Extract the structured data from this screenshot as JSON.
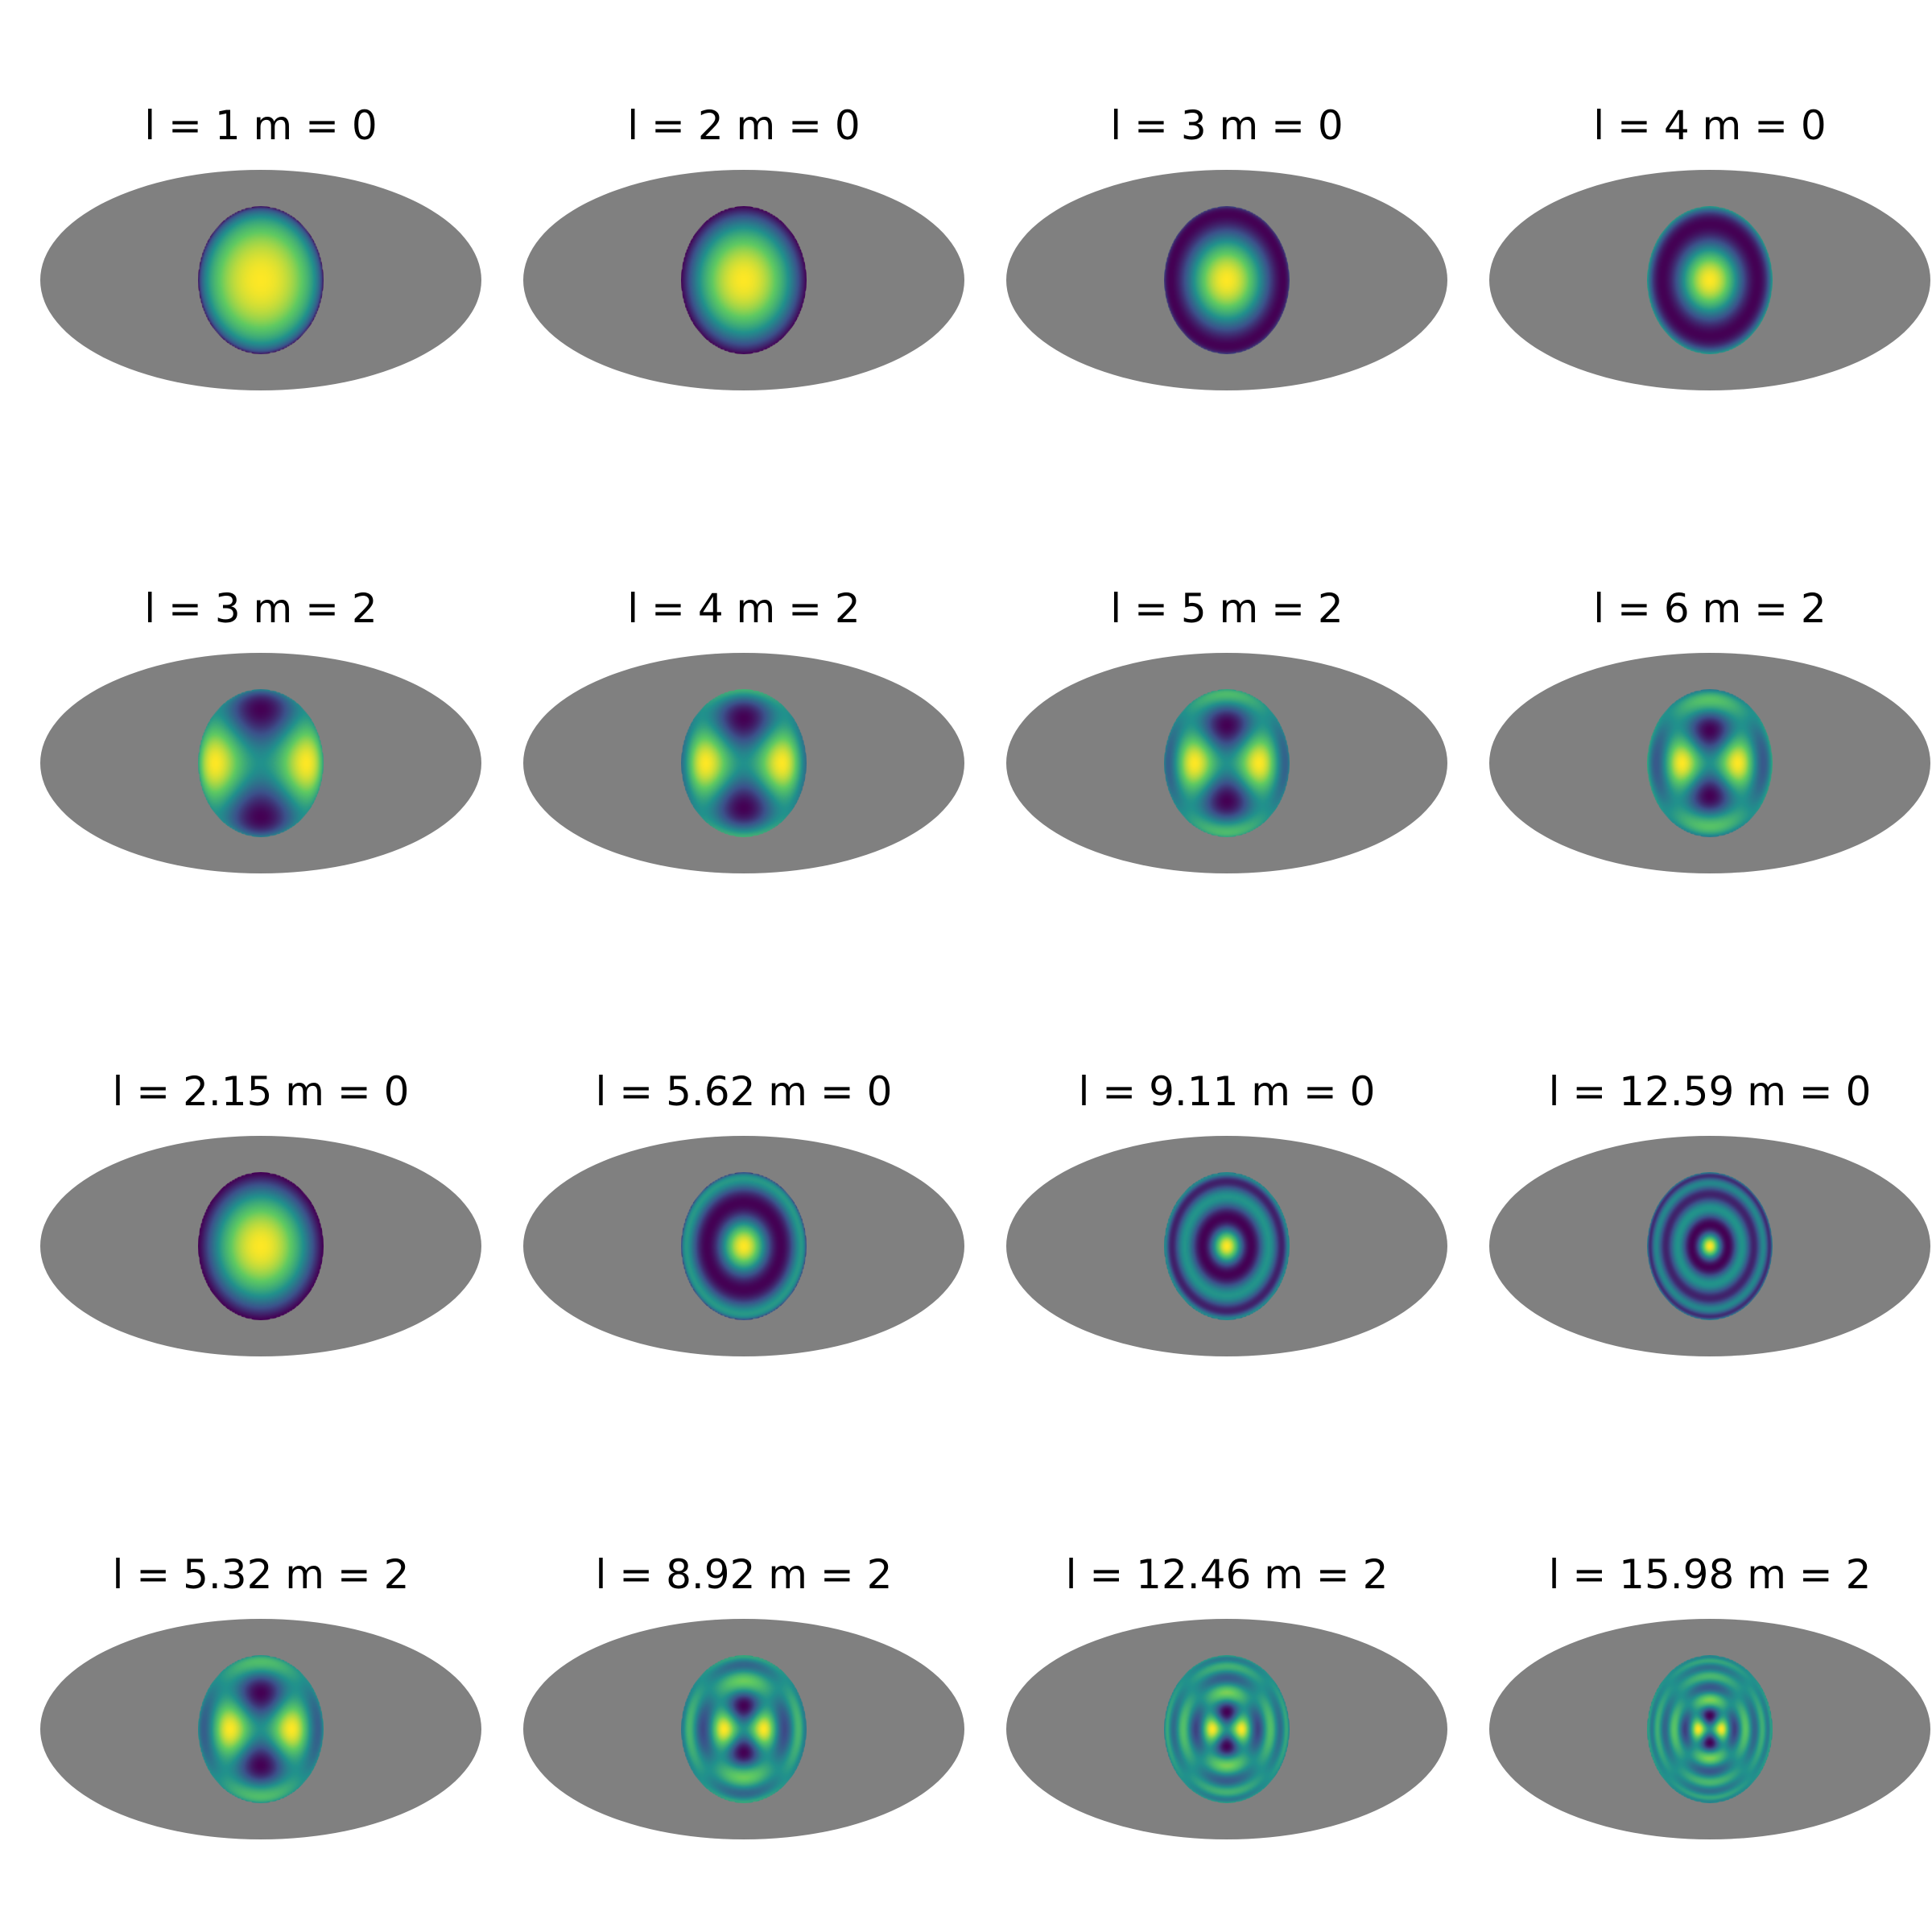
{
  "chart_data": {
    "type": "heatmap",
    "layout": {
      "rows": 4,
      "columns": 4
    },
    "projection": "mollweide",
    "colormap": "viridis",
    "background_color": "#808080",
    "colormap_stops": [
      "#440154",
      "#3b528b",
      "#21918c",
      "#5ec962",
      "#fde725"
    ],
    "panels": [
      {
        "title": "l = 1 m = 0",
        "l": 1,
        "m": 0
      },
      {
        "title": "l = 2 m = 0",
        "l": 2,
        "m": 0
      },
      {
        "title": "l = 3 m = 0",
        "l": 3,
        "m": 0
      },
      {
        "title": "l = 4 m = 0",
        "l": 4,
        "m": 0
      },
      {
        "title": "l = 3 m = 2",
        "l": 3,
        "m": 2
      },
      {
        "title": "l = 4 m = 2",
        "l": 4,
        "m": 2
      },
      {
        "title": "l = 5 m = 2",
        "l": 5,
        "m": 2
      },
      {
        "title": "l = 6 m = 2",
        "l": 6,
        "m": 2
      },
      {
        "title": "l = 2.15 m = 0",
        "l": 2.15,
        "m": 0
      },
      {
        "title": "l = 5.62 m = 0",
        "l": 5.62,
        "m": 0
      },
      {
        "title": "l = 9.11 m = 0",
        "l": 9.11,
        "m": 0
      },
      {
        "title": "l = 12.59 m = 0",
        "l": 12.59,
        "m": 0
      },
      {
        "title": "l = 5.32 m = 2",
        "l": 5.32,
        "m": 2
      },
      {
        "title": "l = 8.92 m = 2",
        "l": 8.92,
        "m": 2
      },
      {
        "title": "l = 12.46 m = 2",
        "l": 12.46,
        "m": 2
      },
      {
        "title": "l = 15.98 m = 2",
        "l": 15.98,
        "m": 2
      }
    ]
  }
}
